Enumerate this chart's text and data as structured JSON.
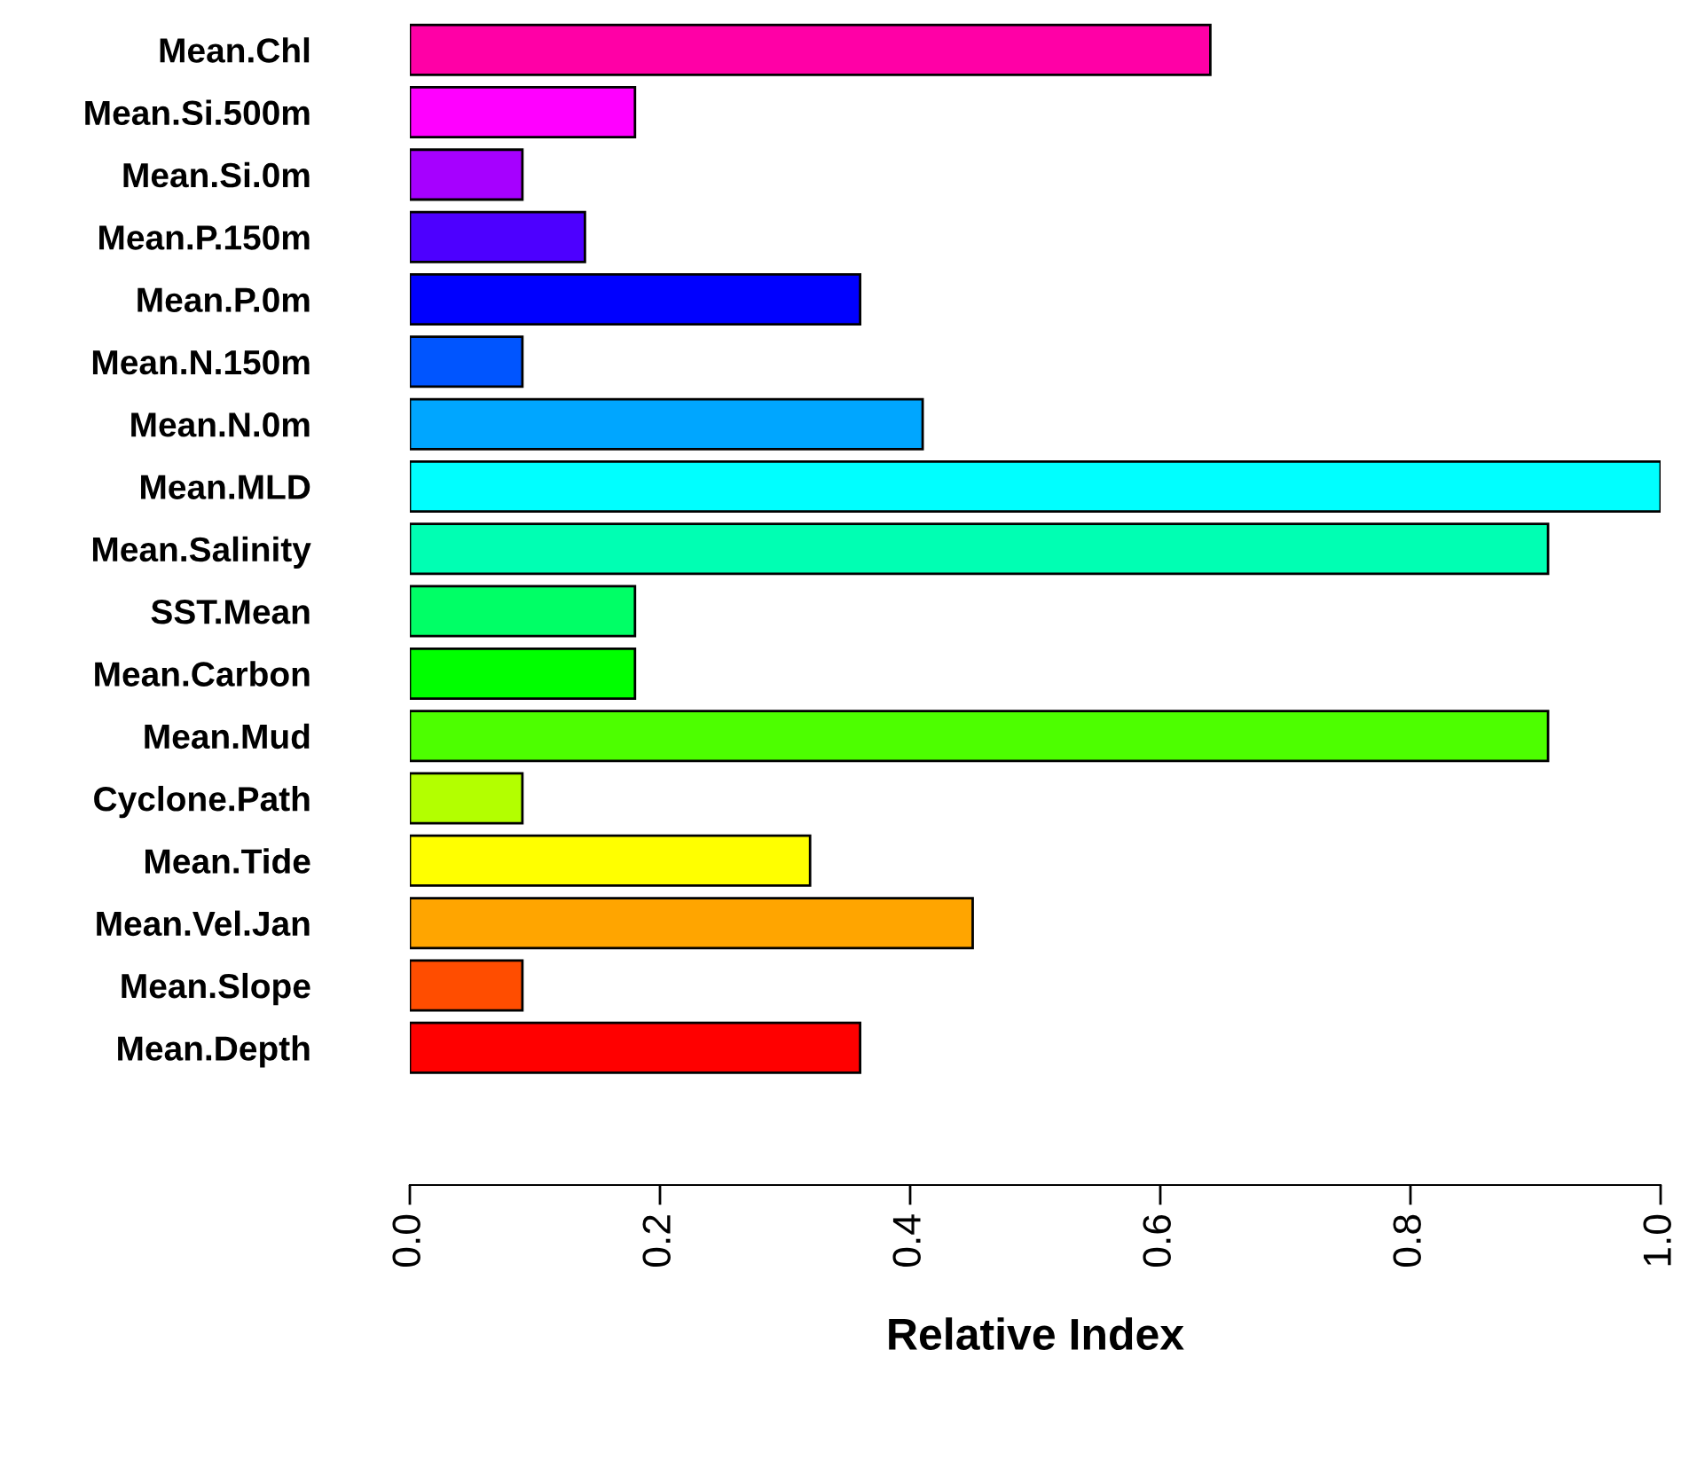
{
  "chart_data": {
    "type": "bar",
    "orientation": "horizontal",
    "xlabel": "Relative Index",
    "categories": [
      "Mean.Chl",
      "Mean.Si.500m",
      "Mean.Si.0m",
      "Mean.P.150m",
      "Mean.P.0m",
      "Mean.N.150m",
      "Mean.N.0m",
      "Mean.MLD",
      "Mean.Salinity",
      "SST.Mean",
      "Mean.Carbon",
      "Mean.Mud",
      "Cyclone.Path",
      "Mean.Tide",
      "Mean.Vel.Jan",
      "Mean.Slope",
      "Mean.Depth"
    ],
    "values": [
      0.64,
      0.18,
      0.09,
      0.14,
      0.36,
      0.09,
      0.41,
      1.0,
      0.91,
      0.18,
      0.18,
      0.91,
      0.09,
      0.32,
      0.45,
      0.09,
      0.36
    ],
    "colors": [
      "#ff00a6",
      "#ff00ff",
      "#a600ff",
      "#4d00ff",
      "#0000ff",
      "#0055ff",
      "#00a6ff",
      "#00ffff",
      "#00ffb3",
      "#00ff66",
      "#00ff00",
      "#4dff00",
      "#b3ff00",
      "#ffff00",
      "#ffa500",
      "#ff4d00",
      "#ff0000"
    ],
    "xlim": [
      0,
      1.0
    ],
    "xticks": [
      {
        "value": 0,
        "label": "0.0"
      },
      {
        "value": 0.2,
        "label": "0.2"
      },
      {
        "value": 0.4,
        "label": "0.4"
      },
      {
        "value": 0.6,
        "label": "0.6"
      },
      {
        "value": 0.8,
        "label": "0.8"
      },
      {
        "value": 1.0,
        "label": "1.0"
      }
    ],
    "grid": false,
    "legend": false
  }
}
